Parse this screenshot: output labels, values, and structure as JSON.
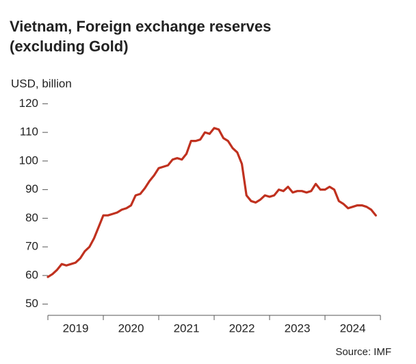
{
  "chart_data": {
    "type": "line",
    "title": "Vietnam, Foreign exchange reserves",
    "subtitle": "(excluding Gold)",
    "y_label": "USD, billion",
    "source": "Source: IMF",
    "x": [
      2019.0,
      2019.083,
      2019.167,
      2019.25,
      2019.333,
      2019.417,
      2019.5,
      2019.583,
      2019.667,
      2019.75,
      2019.833,
      2019.917,
      2020.0,
      2020.083,
      2020.167,
      2020.25,
      2020.333,
      2020.417,
      2020.5,
      2020.583,
      2020.667,
      2020.75,
      2020.833,
      2020.917,
      2021.0,
      2021.083,
      2021.167,
      2021.25,
      2021.333,
      2021.417,
      2021.5,
      2021.583,
      2021.667,
      2021.75,
      2021.833,
      2021.917,
      2022.0,
      2022.083,
      2022.167,
      2022.25,
      2022.333,
      2022.417,
      2022.5,
      2022.583,
      2022.667,
      2022.75,
      2022.833,
      2022.917,
      2023.0,
      2023.083,
      2023.167,
      2023.25,
      2023.333,
      2023.417,
      2023.5,
      2023.583,
      2023.667,
      2023.75,
      2023.833,
      2023.917,
      2024.0,
      2024.083,
      2024.167,
      2024.25,
      2024.333,
      2024.417,
      2024.5,
      2024.583,
      2024.667,
      2024.75,
      2024.833,
      2024.917
    ],
    "series": [
      {
        "name": "Foreign exchange reserves",
        "color": "#c0311f",
        "values": [
          59.5,
          60.5,
          62,
          64,
          63.5,
          64,
          64.5,
          66,
          68.5,
          70,
          73,
          77,
          81,
          81,
          81.5,
          82,
          83,
          83.5,
          84.5,
          88,
          88.5,
          90.5,
          93,
          95,
          97.5,
          98,
          98.5,
          100.5,
          101,
          100.5,
          102.5,
          107,
          107,
          107.5,
          110,
          109.5,
          111.5,
          111,
          108,
          107,
          104.5,
          103,
          99,
          88,
          86,
          85.5,
          86.5,
          88,
          87.5,
          88,
          90,
          89.5,
          91,
          89,
          89.5,
          89.5,
          89,
          89.5,
          92,
          90,
          90,
          91,
          90,
          86,
          85,
          83.5,
          84,
          84.5,
          84.5,
          84,
          83,
          81
        ]
      }
    ],
    "xlim": [
      2019,
      2025
    ],
    "xticks": [
      {
        "value": 2019.5,
        "label": "2019"
      },
      {
        "value": 2020.5,
        "label": "2020"
      },
      {
        "value": 2021.5,
        "label": "2021"
      },
      {
        "value": 2022.5,
        "label": "2022"
      },
      {
        "value": 2023.5,
        "label": "2023"
      },
      {
        "value": 2024.5,
        "label": "2024"
      }
    ],
    "ylim": [
      48,
      122
    ],
    "yticks": [
      50,
      60,
      70,
      80,
      90,
      100,
      110,
      120
    ]
  }
}
